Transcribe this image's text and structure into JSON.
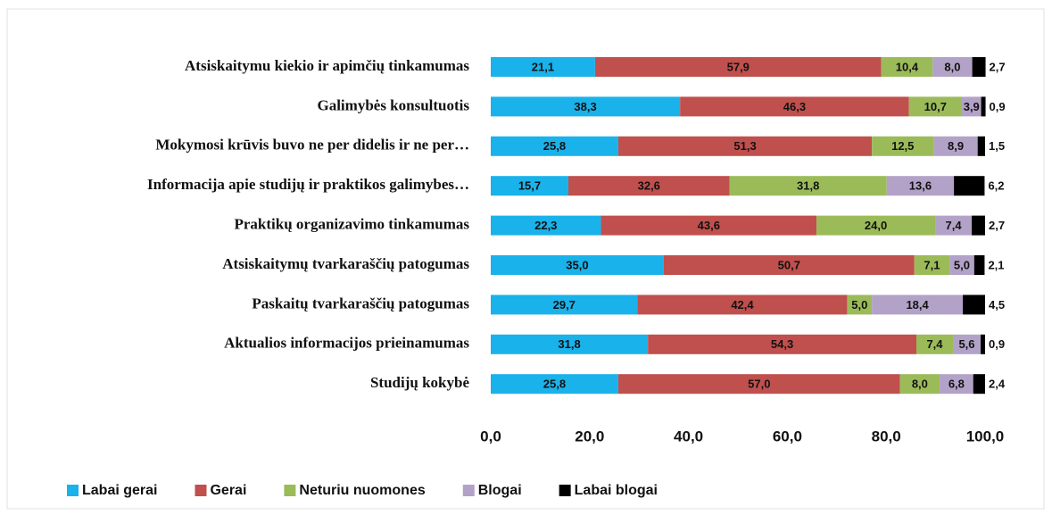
{
  "chart_data": {
    "type": "stacked-bar-horizontal",
    "categories": [
      "Atsiskaitymu kiekio ir apimčių  tinkamumas",
      "Galimybės konsultuotis",
      "Mokymosi krūvis buvo ne per didelis ir ne per…",
      "Informacija apie studijų ir praktikos galimybes…",
      "Praktikų organizavimo tinkamumas",
      "Atsiskaitymų tvarkaraščių patogumas",
      "Paskaitų tvarkaraščių patogumas",
      "Aktualios informacijos prieinamumas",
      "Studijų kokybė"
    ],
    "series": [
      {
        "name": "Labai gerai",
        "color": "#1ab2ea",
        "values": [
          21.1,
          38.3,
          25.8,
          15.7,
          22.3,
          35.0,
          29.7,
          31.8,
          25.8
        ],
        "value_labels": [
          "21,1",
          "38,3",
          "25,8",
          "15,7",
          "22,3",
          "35,0",
          "29,7",
          "31,8",
          "25,8"
        ]
      },
      {
        "name": "Gerai",
        "color": "#c0504d",
        "values": [
          57.9,
          46.3,
          51.3,
          32.6,
          43.6,
          50.7,
          42.4,
          54.3,
          57.0
        ],
        "value_labels": [
          "57,9",
          "46,3",
          "51,3",
          "32,6",
          "43,6",
          "50,7",
          "42,4",
          "54,3",
          "57,0"
        ]
      },
      {
        "name": "Neturiu nuomones",
        "color": "#9bbb59",
        "values": [
          10.4,
          10.7,
          12.5,
          31.8,
          24.0,
          7.1,
          5.0,
          7.4,
          8.0
        ],
        "value_labels": [
          "10,4",
          "10,7",
          "12,5",
          "31,8",
          "24,0",
          "7,1",
          "5,0",
          "7,4",
          "8,0"
        ]
      },
      {
        "name": "Blogai",
        "color": "#b3a2c7",
        "values": [
          8.0,
          3.9,
          8.9,
          13.6,
          7.4,
          5.0,
          18.4,
          5.6,
          6.8
        ],
        "value_labels": [
          "8,0",
          "3,9",
          "8,9",
          "13,6",
          "7,4",
          "5,0",
          "18,4",
          "5,6",
          "6,8"
        ]
      },
      {
        "name": "Labai blogai",
        "color": "#000000",
        "values": [
          2.7,
          0.9,
          1.5,
          6.2,
          2.7,
          2.1,
          4.5,
          0.9,
          2.4
        ],
        "value_labels": [
          "2,7",
          "0,9",
          "1,5",
          "6,2",
          "2,7",
          "2,1",
          "4,5",
          "0,9",
          "2,4"
        ]
      }
    ],
    "xlim": [
      0,
      100
    ],
    "xticks": [
      {
        "value": 0,
        "label": "0,0"
      },
      {
        "value": 20,
        "label": "20,0"
      },
      {
        "value": 40,
        "label": "40,0"
      },
      {
        "value": 60,
        "label": "60,0"
      },
      {
        "value": 80,
        "label": "80,0"
      },
      {
        "value": 100,
        "label": "100,0"
      }
    ],
    "legend": "bottom"
  }
}
